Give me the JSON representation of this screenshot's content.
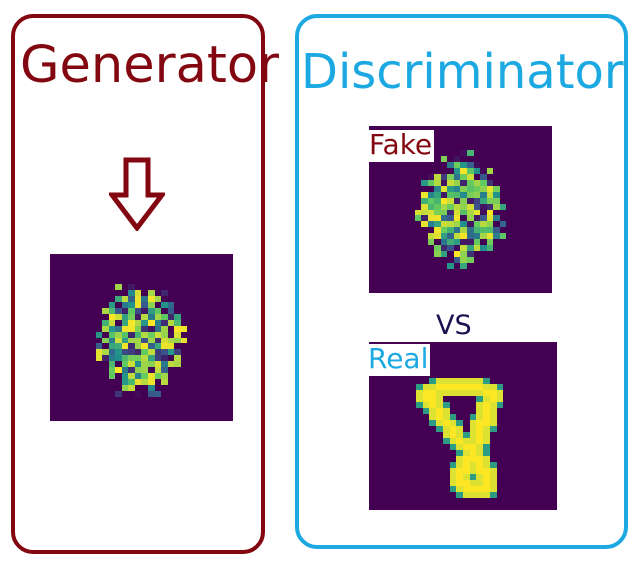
{
  "generator": {
    "title": "Generator",
    "arrow_icon": "down-arrow-icon"
  },
  "discriminator": {
    "title": "Discriminator",
    "fake_label": "Fake",
    "comparison_label": "VS",
    "real_label": "Real"
  },
  "colors": {
    "generator_accent": "#820710",
    "discriminator_accent": "#1ca9e2",
    "vs_text": "#1c1050",
    "viridis_background": "#440154",
    "viridis_mid": "#21918c",
    "viridis_high": "#fde725"
  }
}
